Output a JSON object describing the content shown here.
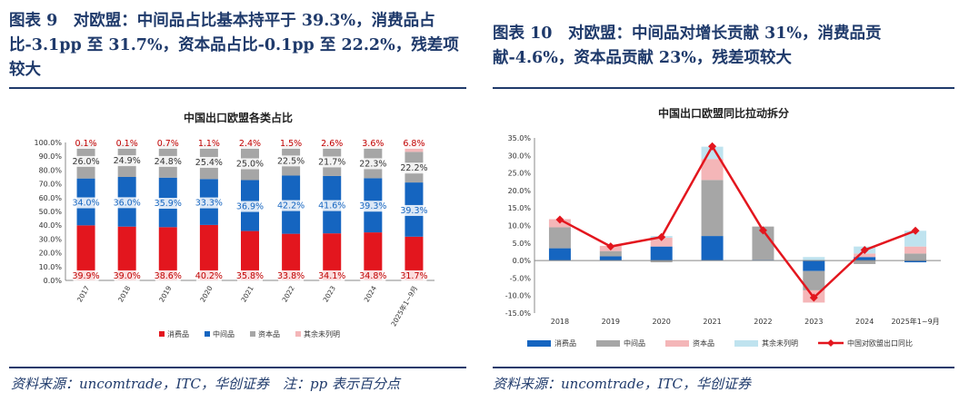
{
  "left": {
    "figure_title": "图表 9　对欧盟：中间品占比基本持平于 39.3%，消费品占比-3.1pp 至 31.7%，资本品占比-0.1pp 至 22.2%，残差项较大",
    "source_note": "资料来源：uncomtrade，ITC，华创证券　注：pp 表示百分点"
  },
  "right": {
    "figure_title": "图表 10　对欧盟：中间品对增长贡献 31%，消费品贡献-4.6%，资本品贡献 23%，残差项较大",
    "source_note": "资料来源：uncomtrade，ITC，华创证券"
  },
  "chart_data": [
    {
      "type": "bar",
      "stacked": true,
      "title": "中国出口欧盟各类占比",
      "categories": [
        "2017",
        "2018",
        "2019",
        "2020",
        "2021",
        "2022",
        "2023",
        "2024",
        "2025年1~9月"
      ],
      "ylim": [
        0,
        100
      ],
      "yticks": [
        "0.0%",
        "10.0%",
        "20.0%",
        "30.0%",
        "40.0%",
        "50.0%",
        "60.0%",
        "70.0%",
        "80.0%",
        "90.0%",
        "100.0%"
      ],
      "series": [
        {
          "name": "消费品",
          "color": "#e3161e",
          "values": [
            39.9,
            39.0,
            38.6,
            40.2,
            35.8,
            33.8,
            34.1,
            34.8,
            31.7
          ],
          "labels": [
            "39.9%",
            "39.0%",
            "38.6%",
            "40.2%",
            "35.8%",
            "33.8%",
            "34.1%",
            "34.8%",
            "31.7%"
          ]
        },
        {
          "name": "中间品",
          "color": "#1565c0",
          "values": [
            34.0,
            36.0,
            35.9,
            33.3,
            36.9,
            42.2,
            41.6,
            39.3,
            39.3
          ],
          "labels": [
            "34.0%",
            "36.0%",
            "35.9%",
            "33.3%",
            "36.9%",
            "42.2%",
            "41.6%",
            "39.3%",
            "39.3%"
          ]
        },
        {
          "name": "资本品",
          "color": "#a6a6a6",
          "values": [
            26.0,
            24.9,
            24.8,
            25.4,
            25.0,
            22.5,
            21.7,
            22.3,
            22.2
          ],
          "labels": [
            "26.0%",
            "24.9%",
            "24.8%",
            "25.4%",
            "25.0%",
            "22.5%",
            "21.7%",
            "22.3%",
            "22.2%"
          ]
        },
        {
          "name": "其余未列明",
          "color": "#f4b6b8",
          "values": [
            0.1,
            0.1,
            0.7,
            1.1,
            2.4,
            1.5,
            2.6,
            3.6,
            6.8
          ],
          "labels": [
            "0.1%",
            "0.1%",
            "0.7%",
            "1.1%",
            "2.4%",
            "1.5%",
            "2.6%",
            "3.6%",
            "6.8%"
          ]
        }
      ]
    },
    {
      "type": "bar",
      "stacked": true,
      "title": "中国出口欧盟同比拉动拆分",
      "categories": [
        "2018",
        "2019",
        "2020",
        "2021",
        "2022",
        "2023",
        "2024",
        "2025年1~9月"
      ],
      "ylim": [
        -15,
        35
      ],
      "yticks": [
        "-15.0%",
        "-10.0%",
        "-5.0%",
        "0.0%",
        "5.0%",
        "10.0%",
        "15.0%",
        "20.0%",
        "25.0%",
        "30.0%",
        "35.0%"
      ],
      "series": [
        {
          "name": "消费品",
          "color": "#1565c0",
          "values": [
            3.5,
            1.2,
            4.0,
            7.0,
            0.2,
            -3.0,
            1.0,
            -0.5
          ]
        },
        {
          "name": "中间品",
          "color": "#a6a6a6",
          "values": [
            6.0,
            1.5,
            -0.5,
            16.0,
            9.5,
            -5.5,
            -1.0,
            2.0
          ]
        },
        {
          "name": "资本品",
          "color": "#f4b6b8",
          "values": [
            2.3,
            1.5,
            2.5,
            6.0,
            0.0,
            -3.5,
            1.0,
            2.0
          ]
        },
        {
          "name": "其余未列明",
          "color": "#bfe3ef",
          "values": [
            0.0,
            0.0,
            0.5,
            3.5,
            0.0,
            1.0,
            2.0,
            4.5
          ]
        }
      ],
      "line": {
        "name": "中国对欧盟出口同比",
        "color": "#e3161e",
        "values": [
          11.7,
          4.0,
          6.7,
          32.6,
          8.6,
          -10.6,
          3.0,
          8.5
        ]
      }
    }
  ]
}
